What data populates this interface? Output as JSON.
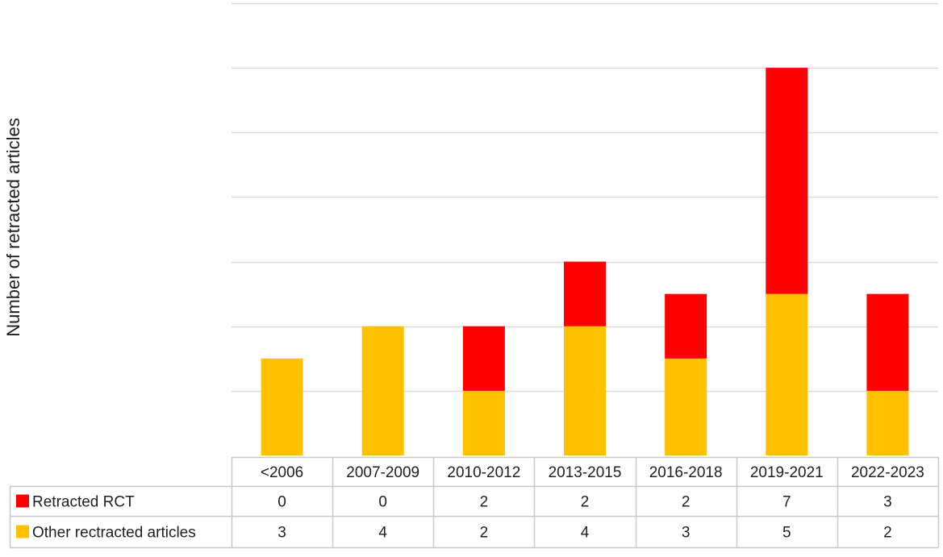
{
  "chart_data": {
    "type": "bar",
    "stacked": true,
    "title": "",
    "xlabel": "",
    "ylabel": "Number of retracted articles",
    "ylim": [
      0,
      14
    ],
    "grid": true,
    "legend_placement": "data-table-left",
    "categories": [
      "<2006",
      "2007-2009",
      "2010-2012",
      "2013-2015",
      "2016-2018",
      "2019-2021",
      "2022-2023"
    ],
    "series": [
      {
        "name": "Retracted RCT",
        "color": "#FF0000",
        "values": [
          0,
          0,
          2,
          2,
          2,
          7,
          3
        ]
      },
      {
        "name": "Other rectracted articles",
        "color": "#FFC000",
        "values": [
          3,
          4,
          2,
          4,
          3,
          5,
          2
        ]
      }
    ],
    "stack_order_bottom_to_top": [
      "Other rectracted articles",
      "Retracted RCT"
    ],
    "data_table": true
  }
}
